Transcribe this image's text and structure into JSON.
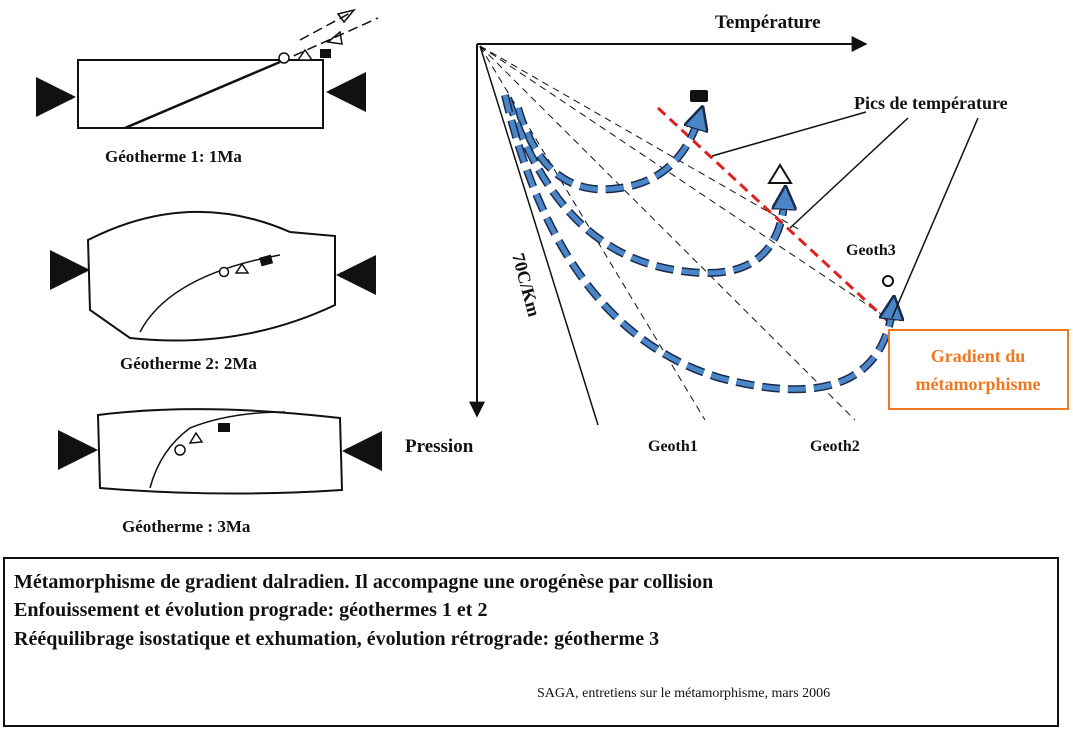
{
  "left_panels": {
    "geotherme1_caption": "Géotherme 1: 1Ma",
    "geotherme2_caption": "Géotherme 2:  2Ma",
    "geotherme3_caption": "Géotherme :   3Ma"
  },
  "pt_diagram": {
    "x_axis_label": "Température",
    "y_axis_label": "Pression",
    "gradient_label": "70C/Km",
    "geoth1_label": "Geoth1",
    "geoth2_label": "Geoth2",
    "geoth3_label": "Geoth3",
    "pics_label": "Pics de température",
    "gradient_box_line1": "Gradient du",
    "gradient_box_line2": "métamorphisme"
  },
  "colors": {
    "path_blue": "#4a86c8",
    "peak_red": "#e02020",
    "highlight_orange": "#f07820",
    "ink": "#111111"
  },
  "footer": {
    "line1": "Métamorphisme de gradient dalradien. Il accompagne une orogénèse par collision",
    "line2": "Enfouissement et évolution prograde: géothermes 1 et 2",
    "line3": "Rééquilibrage isostatique et exhumation, évolution rétrograde: géotherme 3",
    "credit": "SAGA, entretiens sur le métamorphisme, mars 2006"
  }
}
